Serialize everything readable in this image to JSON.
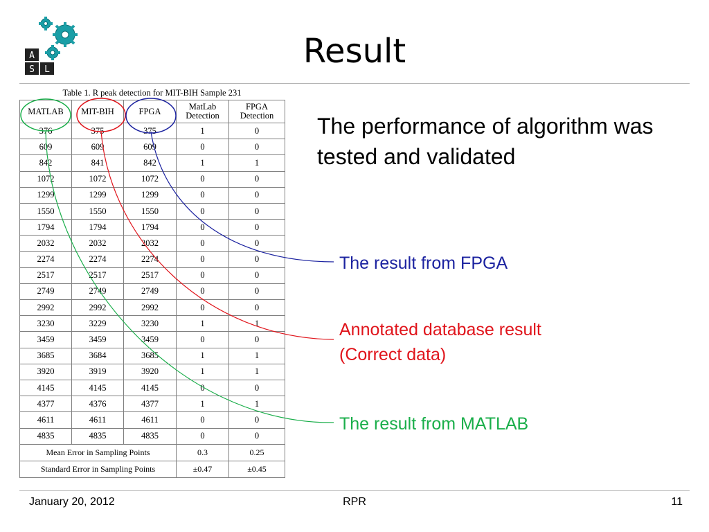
{
  "slide": {
    "title": "Result",
    "body_text": "The performance of algorithm was tested and validated",
    "annotations": {
      "fpga": "The result from FPGA",
      "database_line1": "Annotated database result",
      "database_line2": "(Correct data)",
      "matlab": "The result from MATLAB"
    },
    "footer": {
      "date": "January 20, 2012",
      "center": "RPR",
      "page_number": "11"
    }
  },
  "logo": {
    "letters": [
      "A",
      "S",
      "L"
    ],
    "gear_color": "#1a9ea6"
  },
  "colors": {
    "fpga": "#1c23a0",
    "database": "#e0141b",
    "matlab": "#1aae4a"
  },
  "table": {
    "caption": "Table 1. R peak detection for MIT-BIH Sample 231",
    "headers": [
      "MATLAB",
      "MIT-BIH",
      "FPGA",
      "MatLab Detection",
      "FPGA Detection"
    ],
    "header_lines": [
      [
        "MATLAB"
      ],
      [
        "MIT-BIH"
      ],
      [
        "FPGA"
      ],
      [
        "MatLab",
        "Detection"
      ],
      [
        "FPGA",
        "Detection"
      ]
    ],
    "rows": [
      [
        "376",
        "375",
        "375",
        "1",
        "0"
      ],
      [
        "609",
        "609",
        "609",
        "0",
        "0"
      ],
      [
        "842",
        "841",
        "842",
        "1",
        "1"
      ],
      [
        "1072",
        "1072",
        "1072",
        "0",
        "0"
      ],
      [
        "1299",
        "1299",
        "1299",
        "0",
        "0"
      ],
      [
        "1550",
        "1550",
        "1550",
        "0",
        "0"
      ],
      [
        "1794",
        "1794",
        "1794",
        "0",
        "0"
      ],
      [
        "2032",
        "2032",
        "2032",
        "0",
        "0"
      ],
      [
        "2274",
        "2274",
        "2274",
        "0",
        "0"
      ],
      [
        "2517",
        "2517",
        "2517",
        "0",
        "0"
      ],
      [
        "2749",
        "2749",
        "2749",
        "0",
        "0"
      ],
      [
        "2992",
        "2992",
        "2992",
        "0",
        "0"
      ],
      [
        "3230",
        "3229",
        "3230",
        "1",
        "1"
      ],
      [
        "3459",
        "3459",
        "3459",
        "0",
        "0"
      ],
      [
        "3685",
        "3684",
        "3685",
        "1",
        "1"
      ],
      [
        "3920",
        "3919",
        "3920",
        "1",
        "1"
      ],
      [
        "4145",
        "4145",
        "4145",
        "0",
        "0"
      ],
      [
        "4377",
        "4376",
        "4377",
        "1",
        "1"
      ],
      [
        "4611",
        "4611",
        "4611",
        "0",
        "0"
      ],
      [
        "4835",
        "4835",
        "4835",
        "0",
        "0"
      ]
    ],
    "footer_rows": [
      {
        "label": "Mean Error in Sampling Points",
        "matlab": "0.3",
        "fpga": "0.25"
      },
      {
        "label": "Standard Error in Sampling Points",
        "matlab": "±0.47",
        "fpga": "±0.45"
      }
    ]
  }
}
